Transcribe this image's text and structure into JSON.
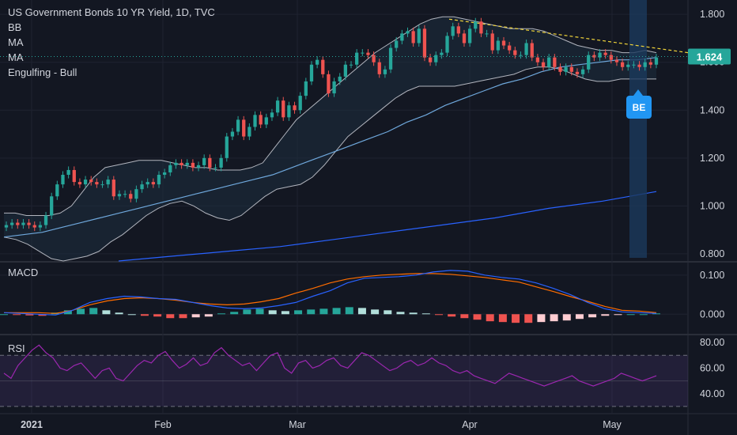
{
  "legend": {
    "title": "US Government Bonds 10 YR Yield, 1D, TVC",
    "indicators": [
      "BB",
      "MA",
      "MA",
      "Engulfing - Bull"
    ]
  },
  "price_badge": "1.624",
  "be_label": "BE",
  "panes": {
    "macd": "MACD",
    "rsi": "RSI"
  },
  "colors": {
    "background": "#131722",
    "up": "#26a69a",
    "down": "#ef5350",
    "bb": "#b2b5be",
    "ma_fast": "#6fa8dc",
    "ma_slow": "#2962ff",
    "macd": "#2962ff",
    "signal": "#ff6d00",
    "rsi": "#9c27b0",
    "badge": "#26a69a",
    "be": "#2196f3",
    "trendline": "#f0d43a"
  },
  "chart_data": [
    {
      "type": "candlestick",
      "title": "US Government Bonds 10 YR Yield, 1D, TVC",
      "x_ticks": [
        "2021",
        "Feb",
        "Mar",
        "Apr",
        "May"
      ],
      "y_ticks": [
        "1.800",
        "1.600",
        "1.400",
        "1.200",
        "1.000",
        "0.800"
      ],
      "ylim": [
        0.77,
        1.86
      ],
      "last_value": 1.624,
      "closes": [
        0.92,
        0.93,
        0.92,
        0.93,
        0.92,
        0.91,
        0.92,
        0.96,
        1.04,
        1.09,
        1.13,
        1.15,
        1.1,
        1.09,
        1.11,
        1.1,
        1.09,
        1.09,
        1.11,
        1.04,
        1.05,
        1.05,
        1.03,
        1.07,
        1.09,
        1.1,
        1.09,
        1.13,
        1.14,
        1.17,
        1.18,
        1.17,
        1.18,
        1.16,
        1.17,
        1.2,
        1.16,
        1.16,
        1.2,
        1.29,
        1.31,
        1.36,
        1.29,
        1.33,
        1.38,
        1.34,
        1.37,
        1.39,
        1.44,
        1.37,
        1.42,
        1.4,
        1.46,
        1.52,
        1.59,
        1.61,
        1.55,
        1.47,
        1.52,
        1.54,
        1.59,
        1.59,
        1.64,
        1.64,
        1.63,
        1.6,
        1.55,
        1.57,
        1.66,
        1.69,
        1.72,
        1.73,
        1.68,
        1.74,
        1.62,
        1.6,
        1.63,
        1.64,
        1.71,
        1.75,
        1.72,
        1.68,
        1.74,
        1.77,
        1.72,
        1.72,
        1.65,
        1.69,
        1.67,
        1.65,
        1.63,
        1.63,
        1.68,
        1.62,
        1.6,
        1.58,
        1.62,
        1.58,
        1.56,
        1.58,
        1.56,
        1.55,
        1.57,
        1.63,
        1.62,
        1.64,
        1.63,
        1.61,
        1.6,
        1.58,
        1.59,
        1.59,
        1.58,
        1.6,
        1.59,
        1.62
      ],
      "bollinger_upper": [
        0.97,
        0.97,
        0.96,
        0.96,
        0.96,
        0.97,
        1.0,
        1.06,
        1.12,
        1.16,
        1.17,
        1.18,
        1.19,
        1.19,
        1.19,
        1.18,
        1.17,
        1.16,
        1.16,
        1.15,
        1.15,
        1.15,
        1.16,
        1.18,
        1.24,
        1.3,
        1.36,
        1.4,
        1.44,
        1.48,
        1.52,
        1.56,
        1.6,
        1.64,
        1.67,
        1.7,
        1.73,
        1.76,
        1.78,
        1.79,
        1.79,
        1.78,
        1.77,
        1.76,
        1.75,
        1.74,
        1.74,
        1.74,
        1.73,
        1.71,
        1.69,
        1.67,
        1.66,
        1.65,
        1.65,
        1.64,
        1.64,
        1.65,
        1.64
      ],
      "bollinger_lower": [
        0.87,
        0.86,
        0.84,
        0.81,
        0.78,
        0.77,
        0.78,
        0.79,
        0.81,
        0.85,
        0.88,
        0.92,
        0.96,
        0.99,
        1.01,
        1.02,
        1.0,
        0.97,
        0.95,
        0.94,
        0.96,
        1.0,
        1.04,
        1.07,
        1.08,
        1.09,
        1.12,
        1.17,
        1.23,
        1.29,
        1.33,
        1.37,
        1.41,
        1.45,
        1.48,
        1.5,
        1.5,
        1.5,
        1.5,
        1.51,
        1.52,
        1.53,
        1.54,
        1.55,
        1.57,
        1.58,
        1.58,
        1.57,
        1.55,
        1.53,
        1.52,
        1.52,
        1.53,
        1.53,
        1.53,
        1.53
      ],
      "ma_fast": [
        0.87,
        0.88,
        0.89,
        0.91,
        0.93,
        0.95,
        0.97,
        0.99,
        1.01,
        1.03,
        1.05,
        1.07,
        1.09,
        1.11,
        1.13,
        1.16,
        1.19,
        1.22,
        1.25,
        1.28,
        1.31,
        1.35,
        1.38,
        1.42,
        1.45,
        1.48,
        1.51,
        1.53,
        1.56,
        1.58,
        1.59,
        1.6,
        1.61,
        1.61,
        1.62
      ],
      "ma_slow": [
        0.77,
        0.79,
        0.81,
        0.83,
        0.86,
        0.89,
        0.92,
        0.95,
        0.99,
        1.02,
        1.06
      ],
      "trendline": [
        1.78,
        1.64
      ]
    },
    {
      "type": "line",
      "title": "MACD",
      "y_ticks": [
        "0.100",
        "0.000"
      ],
      "ylim": [
        -0.05,
        0.13
      ],
      "series": [
        {
          "values": [
            0.004,
            0.002,
            0.0,
            -0.002,
            0.01,
            0.03,
            0.04,
            0.046,
            0.044,
            0.04,
            0.038,
            0.03,
            0.022,
            0.016,
            0.014,
            0.016,
            0.022,
            0.03,
            0.046,
            0.06,
            0.08,
            0.092,
            0.094,
            0.096,
            0.1,
            0.108,
            0.112,
            0.11,
            0.1,
            0.094,
            0.09,
            0.08,
            0.066,
            0.05,
            0.03,
            0.014,
            0.006,
            0.004,
            0.002
          ]
        },
        {
          "values": [
            0.004,
            0.004,
            0.004,
            0.002,
            0.01,
            0.024,
            0.034,
            0.04,
            0.042,
            0.04,
            0.036,
            0.03,
            0.026,
            0.024,
            0.026,
            0.032,
            0.04,
            0.054,
            0.066,
            0.08,
            0.09,
            0.096,
            0.1,
            0.102,
            0.104,
            0.104,
            0.102,
            0.098,
            0.094,
            0.088,
            0.082,
            0.07,
            0.058,
            0.045,
            0.033,
            0.02,
            0.01,
            0.008,
            0.004
          ]
        }
      ],
      "histogram": [
        0.0,
        -0.002,
        -0.003,
        -0.004,
        0.004,
        0.01,
        0.014,
        0.016,
        0.01,
        0.004,
        0.0,
        -0.004,
        -0.006,
        -0.01,
        -0.01,
        -0.008,
        -0.006,
        0.002,
        0.006,
        0.012,
        0.014,
        0.01,
        0.008,
        0.01,
        0.012,
        0.014,
        0.016,
        0.018,
        0.016,
        0.012,
        0.01,
        0.006,
        0.004,
        0.002,
        -0.002,
        -0.006,
        -0.01,
        -0.014,
        -0.018,
        -0.02,
        -0.022,
        -0.022,
        -0.02,
        -0.018,
        -0.016,
        -0.012,
        -0.008,
        -0.004,
        -0.002,
        0.0,
        0.0,
        0.002
      ]
    },
    {
      "type": "line",
      "title": "RSI",
      "y_ticks": [
        "80.00",
        "60.00",
        "40.00"
      ],
      "ylim": [
        25,
        85
      ],
      "bands": [
        70,
        50,
        30
      ],
      "series": [
        {
          "values": [
            56,
            52,
            62,
            68,
            74,
            78,
            72,
            68,
            60,
            58,
            62,
            64,
            58,
            52,
            58,
            60,
            52,
            50,
            56,
            62,
            66,
            64,
            70,
            73,
            66,
            60,
            63,
            68,
            62,
            64,
            72,
            76,
            70,
            66,
            62,
            64,
            58,
            64,
            70,
            72,
            60,
            56,
            64,
            66,
            60,
            62,
            66,
            68,
            62,
            60,
            66,
            72,
            70,
            66,
            62,
            58,
            60,
            64,
            66,
            62,
            64,
            68,
            64,
            62,
            58,
            56,
            58,
            54,
            52,
            50,
            48,
            52,
            56,
            54,
            52,
            50,
            48,
            46,
            48,
            50,
            52,
            54,
            50,
            48,
            46,
            48,
            50,
            52,
            56,
            54,
            52,
            50,
            52,
            54
          ]
        }
      ]
    }
  ]
}
